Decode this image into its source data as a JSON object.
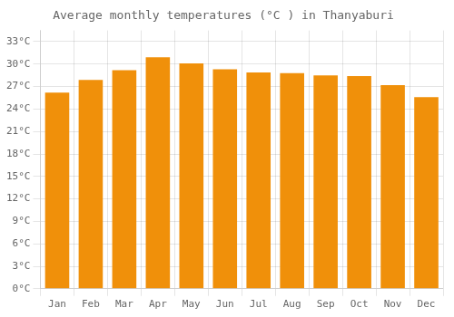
{
  "chart_data": {
    "type": "bar",
    "title": "Average monthly temperatures (°C ) in Thanyaburi",
    "categories": [
      "Jan",
      "Feb",
      "Mar",
      "Apr",
      "May",
      "Jun",
      "Jul",
      "Aug",
      "Sep",
      "Oct",
      "Nov",
      "Dec"
    ],
    "values": [
      26.2,
      27.9,
      29.2,
      30.9,
      30.1,
      29.3,
      28.9,
      28.8,
      28.5,
      28.4,
      27.2,
      25.6
    ],
    "color": "#F0900A",
    "ylim": [
      0,
      34.5
    ],
    "yticks": [
      {
        "value": 0,
        "label": "0°C"
      },
      {
        "value": 3,
        "label": "3°C"
      },
      {
        "value": 6,
        "label": "6°C"
      },
      {
        "value": 9,
        "label": "9°C"
      },
      {
        "value": 12,
        "label": "12°C"
      },
      {
        "value": 15,
        "label": "15°C"
      },
      {
        "value": 18,
        "label": "18°C"
      },
      {
        "value": 21,
        "label": "21°C"
      },
      {
        "value": 24,
        "label": "24°C"
      },
      {
        "value": 27,
        "label": "27°C"
      },
      {
        "value": 30,
        "label": "30°C"
      },
      {
        "value": 33,
        "label": "33°C"
      }
    ],
    "grid": true
  }
}
